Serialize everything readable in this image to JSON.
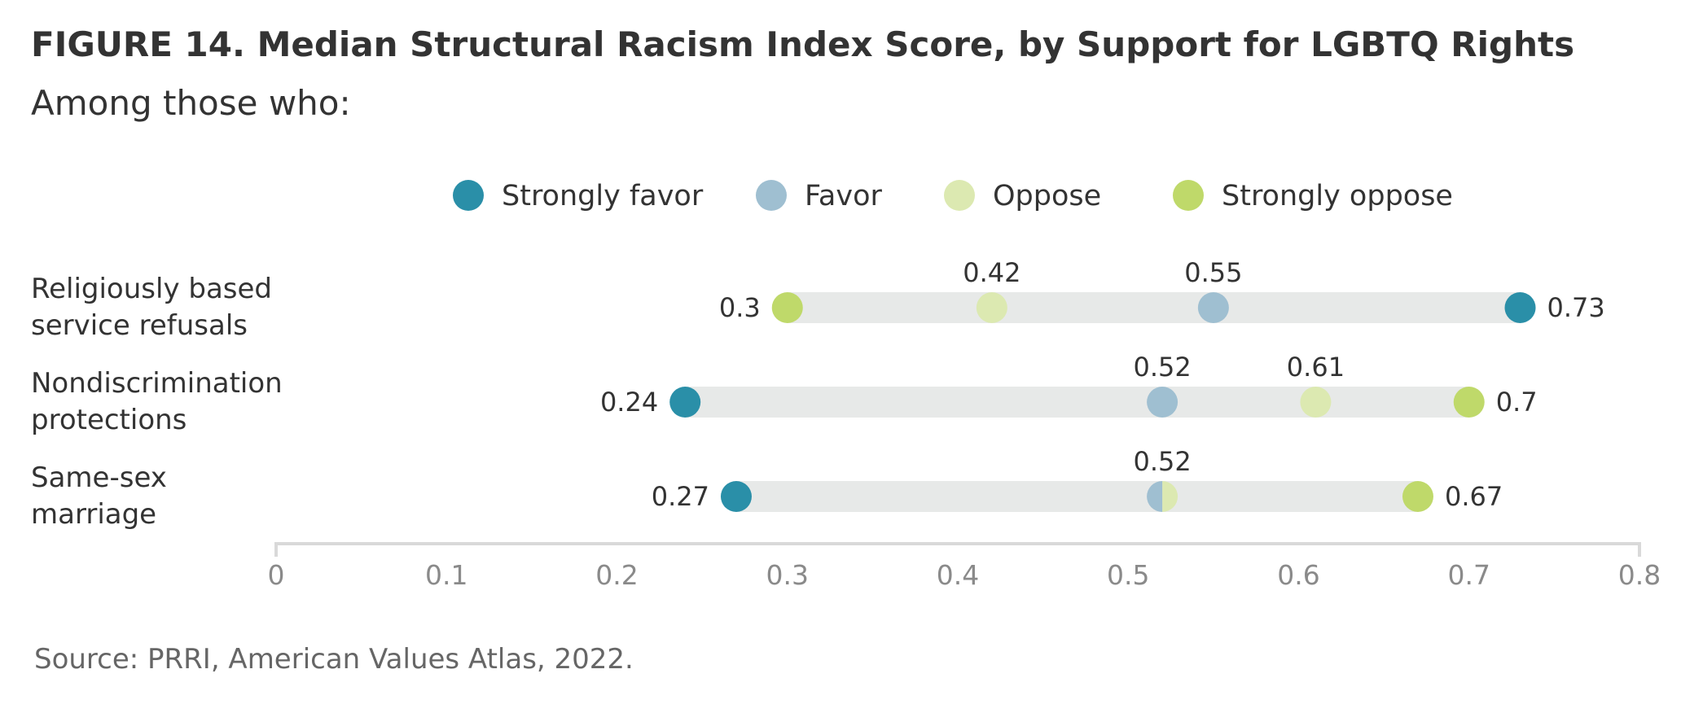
{
  "title": "FIGURE 14.  Median Structural Racism Index Score, by Support for LGBTQ Rights",
  "subtitle": "Among those who:",
  "source": "Source: PRRI, American Values Atlas, 2022.",
  "chart_data": {
    "type": "dot-range",
    "xlim": [
      0,
      0.8
    ],
    "x_ticks": [
      "0",
      "0.1",
      "0.2",
      "0.3",
      "0.4",
      "0.5",
      "0.6",
      "0.7",
      "0.8"
    ],
    "legend_placement": "top",
    "series": [
      {
        "key": "strongly_favor",
        "name": "Strongly favor",
        "color": "#2a8fa8"
      },
      {
        "key": "favor",
        "name": "Favor",
        "color": "#9fbfd1"
      },
      {
        "key": "oppose",
        "name": "Oppose",
        "color": "#dce9b1"
      },
      {
        "key": "strongly_oppose",
        "name": "Strongly oppose",
        "color": "#bfd96a"
      }
    ],
    "categories": [
      {
        "label": [
          "Religiously based",
          "service refusals"
        ],
        "values": {
          "strongly_favor": 0.73,
          "favor": 0.55,
          "oppose": 0.42,
          "strongly_oppose": 0.3
        },
        "data_labels": [
          {
            "text": "0.3",
            "value": 0.3,
            "pos": "left"
          },
          {
            "text": "0.42",
            "value": 0.42,
            "pos": "above"
          },
          {
            "text": "0.55",
            "value": 0.55,
            "pos": "above"
          },
          {
            "text": "0.73",
            "value": 0.73,
            "pos": "right"
          }
        ]
      },
      {
        "label": [
          "Nondiscrimination",
          "protections"
        ],
        "values": {
          "strongly_favor": 0.24,
          "favor": 0.52,
          "oppose": 0.61,
          "strongly_oppose": 0.7
        },
        "data_labels": [
          {
            "text": "0.24",
            "value": 0.24,
            "pos": "left"
          },
          {
            "text": "0.52",
            "value": 0.52,
            "pos": "above"
          },
          {
            "text": "0.61",
            "value": 0.61,
            "pos": "above"
          },
          {
            "text": "0.7",
            "value": 0.7,
            "pos": "right"
          }
        ]
      },
      {
        "label": [
          "Same-sex",
          "marriage"
        ],
        "values": {
          "strongly_favor": 0.27,
          "favor": 0.52,
          "oppose": 0.52,
          "strongly_oppose": 0.67
        },
        "data_labels": [
          {
            "text": "0.27",
            "value": 0.27,
            "pos": "left"
          },
          {
            "text": "0.52",
            "value": 0.52,
            "pos": "above"
          },
          {
            "text": "0.67",
            "value": 0.67,
            "pos": "right"
          }
        ]
      }
    ]
  }
}
